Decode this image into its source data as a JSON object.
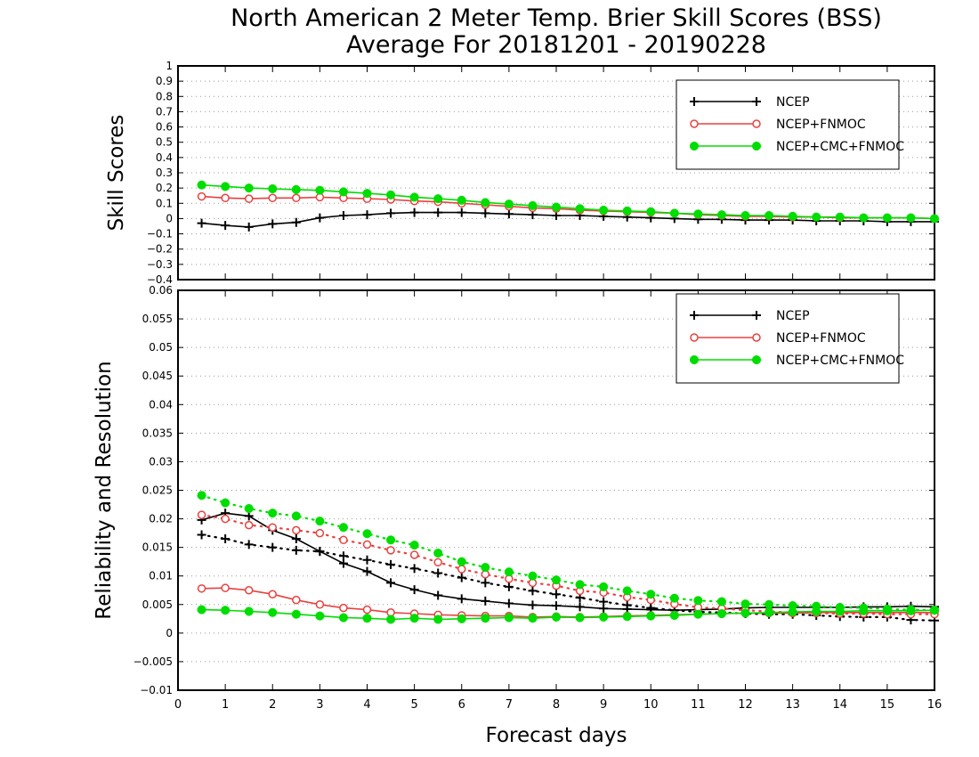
{
  "title_line1": "North American 2 Meter Temp. Brier Skill Scores (BSS)",
  "title_line2": "Average For 20181201 - 20190228",
  "colors": {
    "NCEP": "#000000",
    "NCEP+FNMOC": "#e8413f",
    "NCEP+CMC+FNMOC": "#00dd00"
  },
  "chart_data": [
    {
      "type": "line",
      "ylabel": "Skill Scores",
      "xlabel": "Forecast days",
      "xlim": [
        0,
        16
      ],
      "ylim": [
        -0.4,
        1.0
      ],
      "xticks": [
        "0",
        "1",
        "2",
        "3",
        "4",
        "5",
        "6",
        "7",
        "8",
        "9",
        "10",
        "11",
        "12",
        "13",
        "14",
        "15",
        "16"
      ],
      "yticks": [
        "-0.4",
        "-0.3",
        "-0.2",
        "-0.1",
        "0",
        "0.1",
        "0.2",
        "0.3",
        "0.4",
        "0.5",
        "0.6",
        "0.7",
        "0.8",
        "0.9",
        "1"
      ],
      "grid": true,
      "legend_position": "top-right",
      "x": [
        0.5,
        1,
        1.5,
        2,
        2.5,
        3,
        3.5,
        4,
        4.5,
        5,
        5.5,
        6,
        6.5,
        7,
        7.5,
        8,
        8.5,
        9,
        9.5,
        10,
        10.5,
        11,
        11.5,
        12,
        12.5,
        13,
        13.5,
        14,
        14.5,
        15,
        15.5,
        16
      ],
      "series": [
        {
          "name": "NCEP",
          "style": "solid",
          "marker": "plus",
          "values": [
            -0.03,
            -0.045,
            -0.055,
            -0.035,
            -0.025,
            0.005,
            0.02,
            0.025,
            0.035,
            0.04,
            0.04,
            0.04,
            0.035,
            0.03,
            0.025,
            0.02,
            0.02,
            0.015,
            0.01,
            0.005,
            0.0,
            -0.005,
            -0.005,
            -0.01,
            -0.01,
            -0.01,
            -0.015,
            -0.015,
            -0.015,
            -0.02,
            -0.02,
            -0.02
          ]
        },
        {
          "name": "NCEP+FNMOC",
          "style": "solid",
          "marker": "circle",
          "values": [
            0.145,
            0.135,
            0.13,
            0.135,
            0.135,
            0.14,
            0.135,
            0.13,
            0.125,
            0.115,
            0.11,
            0.1,
            0.09,
            0.08,
            0.07,
            0.065,
            0.055,
            0.05,
            0.045,
            0.04,
            0.035,
            0.025,
            0.02,
            0.015,
            0.015,
            0.01,
            0.01,
            0.005,
            0.005,
            0.005,
            0.005,
            0.0
          ]
        },
        {
          "name": "NCEP+CMC+FNMOC",
          "style": "solid",
          "marker": "dot",
          "values": [
            0.22,
            0.21,
            0.2,
            0.195,
            0.19,
            0.185,
            0.175,
            0.165,
            0.155,
            0.14,
            0.13,
            0.12,
            0.105,
            0.095,
            0.085,
            0.075,
            0.065,
            0.055,
            0.05,
            0.045,
            0.035,
            0.03,
            0.025,
            0.02,
            0.02,
            0.015,
            0.01,
            0.01,
            0.005,
            0.005,
            0.005,
            0.0
          ]
        }
      ]
    },
    {
      "type": "line",
      "ylabel": "Reliability and Resolution",
      "xlabel": "Forecast days",
      "xlim": [
        0,
        16
      ],
      "ylim": [
        -0.01,
        0.06
      ],
      "xticks": [
        "0",
        "1",
        "2",
        "3",
        "4",
        "5",
        "6",
        "7",
        "8",
        "9",
        "10",
        "11",
        "12",
        "13",
        "14",
        "15",
        "16"
      ],
      "yticks": [
        "-0.01",
        "-0.005",
        "0",
        "0.005",
        "0.01",
        "0.015",
        "0.02",
        "0.025",
        "0.03",
        "0.035",
        "0.04",
        "0.045",
        "0.05",
        "0.055",
        "0.06"
      ],
      "grid": true,
      "legend_position": "top-right",
      "x": [
        0.5,
        1,
        1.5,
        2,
        2.5,
        3,
        3.5,
        4,
        4.5,
        5,
        5.5,
        6,
        6.5,
        7,
        7.5,
        8,
        8.5,
        9,
        9.5,
        10,
        10.5,
        11,
        11.5,
        12,
        12.5,
        13,
        13.5,
        14,
        14.5,
        15,
        15.5,
        16
      ],
      "series": [
        {
          "name": "NCEP",
          "style": "solid",
          "marker": "plus",
          "values": [
            0.0198,
            0.021,
            0.0205,
            0.018,
            0.0165,
            0.0143,
            0.0122,
            0.0108,
            0.0088,
            0.0076,
            0.0066,
            0.006,
            0.0056,
            0.0052,
            0.0049,
            0.0048,
            0.0046,
            0.0043,
            0.0042,
            0.0041,
            0.004,
            0.0041,
            0.0042,
            0.0044,
            0.0045,
            0.0045,
            0.0045,
            0.0045,
            0.0046,
            0.0046,
            0.0047,
            0.0046
          ]
        },
        {
          "style": "dotted",
          "marker": "plus",
          "colorKey": "NCEP",
          "values": [
            0.0172,
            0.0165,
            0.0155,
            0.015,
            0.0145,
            0.0143,
            0.0135,
            0.0128,
            0.012,
            0.0113,
            0.0105,
            0.0097,
            0.0088,
            0.0081,
            0.0074,
            0.0068,
            0.0062,
            0.0055,
            0.0049,
            0.0044,
            0.004,
            0.0037,
            0.0036,
            0.0034,
            0.0033,
            0.0033,
            0.0031,
            0.0029,
            0.0028,
            0.0028,
            0.0023,
            0.0022
          ]
        },
        {
          "name": "NCEP+FNMOC",
          "style": "solid",
          "marker": "circle",
          "values": [
            0.0078,
            0.0079,
            0.0075,
            0.0068,
            0.0058,
            0.005,
            0.0044,
            0.0041,
            0.0036,
            0.0034,
            0.0032,
            0.0031,
            0.003,
            0.003,
            0.0028,
            0.0029,
            0.0028,
            0.0029,
            0.003,
            0.0031,
            0.0032,
            0.0033,
            0.0034,
            0.0035,
            0.0035,
            0.0035,
            0.0036,
            0.0036,
            0.0036,
            0.0036,
            0.0036,
            0.0036
          ]
        },
        {
          "style": "dotted",
          "marker": "circle",
          "colorKey": "NCEP+FNMOC",
          "values": [
            0.0207,
            0.02,
            0.0189,
            0.0185,
            0.018,
            0.0175,
            0.0163,
            0.0155,
            0.0145,
            0.0137,
            0.0124,
            0.0112,
            0.0103,
            0.0095,
            0.0088,
            0.0083,
            0.0074,
            0.0071,
            0.0063,
            0.0058,
            0.0051,
            0.0045,
            0.0043,
            0.004,
            0.0038,
            0.0036,
            0.0035,
            0.0034,
            0.0034,
            0.0033,
            0.0033,
            0.0033
          ]
        },
        {
          "name": "NCEP+CMC+FNMOC",
          "style": "solid",
          "marker": "dot",
          "values": [
            0.0041,
            0.004,
            0.0038,
            0.0036,
            0.0033,
            0.003,
            0.0027,
            0.0026,
            0.0024,
            0.0026,
            0.0024,
            0.0025,
            0.0026,
            0.0027,
            0.0026,
            0.0028,
            0.0027,
            0.0028,
            0.0029,
            0.003,
            0.0031,
            0.0033,
            0.0034,
            0.0035,
            0.0036,
            0.0037,
            0.0038,
            0.0038,
            0.0039,
            0.0039,
            0.0039,
            0.004
          ]
        },
        {
          "style": "dotted",
          "marker": "dot",
          "colorKey": "NCEP+CMC+FNMOC",
          "values": [
            0.0241,
            0.0228,
            0.0218,
            0.021,
            0.0205,
            0.0196,
            0.0185,
            0.0174,
            0.0163,
            0.0154,
            0.014,
            0.0125,
            0.0115,
            0.0107,
            0.01,
            0.0093,
            0.0085,
            0.0081,
            0.0074,
            0.0068,
            0.0061,
            0.0057,
            0.0055,
            0.0051,
            0.005,
            0.0048,
            0.0047,
            0.0045,
            0.0044,
            0.0042,
            0.0041,
            0.004
          ]
        }
      ]
    }
  ]
}
